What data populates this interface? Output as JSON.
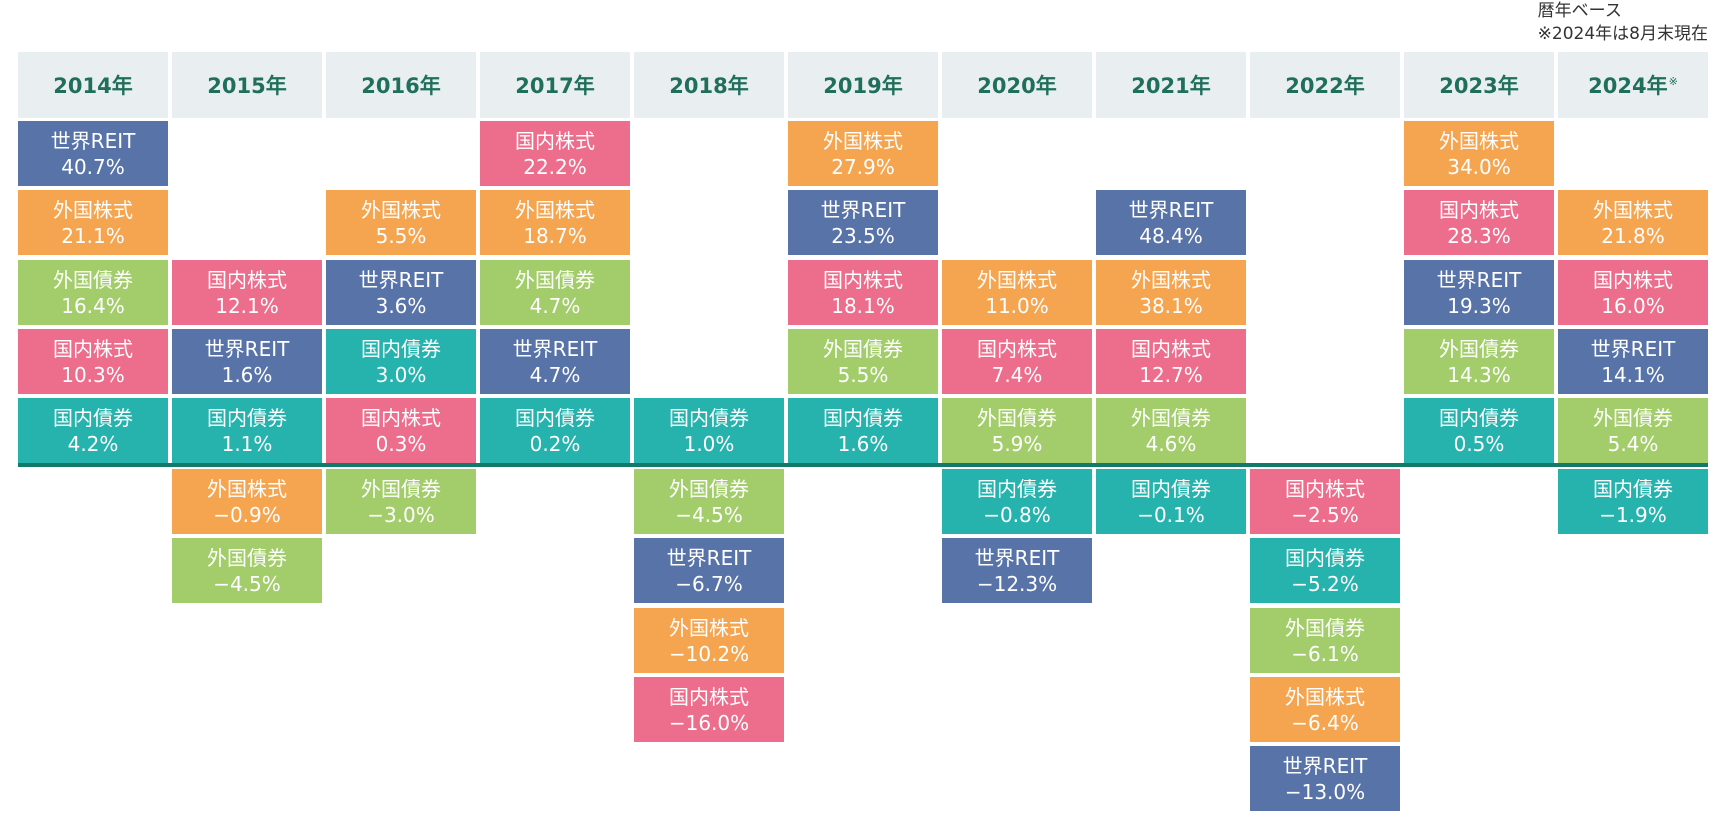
{
  "note": {
    "line1": "暦年ベース",
    "line2": "※2024年は8月末現在"
  },
  "colors": {
    "世界REIT": "#5873a8",
    "外国株式": "#f5a550",
    "外国債券": "#a3cd6b",
    "国内株式": "#ec6d8c",
    "国内債券": "#27b3ad"
  },
  "chart_data": {
    "type": "table",
    "title": "",
    "categories": [
      "2014年",
      "2015年",
      "2016年",
      "2017年",
      "2018年",
      "2019年",
      "2020年",
      "2021年",
      "2022年",
      "2023年",
      "2024年"
    ],
    "category_marks": [
      "",
      "",
      "",
      "",
      "",
      "",
      "",
      "",
      "",
      "",
      "※"
    ],
    "asset_classes": [
      "世界REIT",
      "外国株式",
      "外国債券",
      "国内株式",
      "国内債券"
    ],
    "years": [
      {
        "positive": [
          {
            "asset": "世界REIT",
            "label": "40.7%",
            "value": 40.7
          },
          {
            "asset": "外国株式",
            "label": "21.1%",
            "value": 21.1
          },
          {
            "asset": "外国債券",
            "label": "16.4%",
            "value": 16.4
          },
          {
            "asset": "国内株式",
            "label": "10.3%",
            "value": 10.3
          },
          {
            "asset": "国内債券",
            "label": "4.2%",
            "value": 4.2
          }
        ],
        "negative": []
      },
      {
        "positive": [
          {
            "asset": "国内株式",
            "label": "12.1%",
            "value": 12.1
          },
          {
            "asset": "世界REIT",
            "label": "1.6%",
            "value": 1.6
          },
          {
            "asset": "国内債券",
            "label": "1.1%",
            "value": 1.1
          }
        ],
        "negative": [
          {
            "asset": "外国株式",
            "label": "−0.9%",
            "value": -0.9
          },
          {
            "asset": "外国債券",
            "label": "−4.5%",
            "value": -4.5
          }
        ]
      },
      {
        "positive": [
          {
            "asset": "外国株式",
            "label": "5.5%",
            "value": 5.5
          },
          {
            "asset": "世界REIT",
            "label": "3.6%",
            "value": 3.6
          },
          {
            "asset": "国内債券",
            "label": "3.0%",
            "value": 3.0
          },
          {
            "asset": "国内株式",
            "label": "0.3%",
            "value": 0.3
          }
        ],
        "negative": [
          {
            "asset": "外国債券",
            "label": "−3.0%",
            "value": -3.0
          }
        ]
      },
      {
        "positive": [
          {
            "asset": "国内株式",
            "label": "22.2%",
            "value": 22.2
          },
          {
            "asset": "外国株式",
            "label": "18.7%",
            "value": 18.7
          },
          {
            "asset": "外国債券",
            "label": "4.7%",
            "value": 4.7
          },
          {
            "asset": "世界REIT",
            "label": "4.7%",
            "value": 4.7
          },
          {
            "asset": "国内債券",
            "label": "0.2%",
            "value": 0.2
          }
        ],
        "negative": []
      },
      {
        "positive": [
          {
            "asset": "国内債券",
            "label": "1.0%",
            "value": 1.0
          }
        ],
        "negative": [
          {
            "asset": "外国債券",
            "label": "−4.5%",
            "value": -4.5
          },
          {
            "asset": "世界REIT",
            "label": "−6.7%",
            "value": -6.7
          },
          {
            "asset": "外国株式",
            "label": "−10.2%",
            "value": -10.2
          },
          {
            "asset": "国内株式",
            "label": "−16.0%",
            "value": -16.0
          }
        ]
      },
      {
        "positive": [
          {
            "asset": "外国株式",
            "label": "27.9%",
            "value": 27.9
          },
          {
            "asset": "世界REIT",
            "label": "23.5%",
            "value": 23.5
          },
          {
            "asset": "国内株式",
            "label": "18.1%",
            "value": 18.1
          },
          {
            "asset": "外国債券",
            "label": "5.5%",
            "value": 5.5
          },
          {
            "asset": "国内債券",
            "label": "1.6%",
            "value": 1.6
          }
        ],
        "negative": []
      },
      {
        "positive": [
          {
            "asset": "外国株式",
            "label": "11.0%",
            "value": 11.0
          },
          {
            "asset": "国内株式",
            "label": "7.4%",
            "value": 7.4
          },
          {
            "asset": "外国債券",
            "label": "5.9%",
            "value": 5.9
          }
        ],
        "negative": [
          {
            "asset": "国内債券",
            "label": "−0.8%",
            "value": -0.8
          },
          {
            "asset": "世界REIT",
            "label": "−12.3%",
            "value": -12.3
          }
        ]
      },
      {
        "positive": [
          {
            "asset": "世界REIT",
            "label": "48.4%",
            "value": 48.4
          },
          {
            "asset": "外国株式",
            "label": "38.1%",
            "value": 38.1
          },
          {
            "asset": "国内株式",
            "label": "12.7%",
            "value": 12.7
          },
          {
            "asset": "外国債券",
            "label": "4.6%",
            "value": 4.6
          }
        ],
        "negative": [
          {
            "asset": "国内債券",
            "label": "−0.1%",
            "value": -0.1
          }
        ]
      },
      {
        "positive": [],
        "negative": [
          {
            "asset": "国内株式",
            "label": "−2.5%",
            "value": -2.5
          },
          {
            "asset": "国内債券",
            "label": "−5.2%",
            "value": -5.2
          },
          {
            "asset": "外国債券",
            "label": "−6.1%",
            "value": -6.1
          },
          {
            "asset": "外国株式",
            "label": "−6.4%",
            "value": -6.4
          },
          {
            "asset": "世界REIT",
            "label": "−13.0%",
            "value": -13.0
          }
        ]
      },
      {
        "positive": [
          {
            "asset": "外国株式",
            "label": "34.0%",
            "value": 34.0
          },
          {
            "asset": "国内株式",
            "label": "28.3%",
            "value": 28.3
          },
          {
            "asset": "世界REIT",
            "label": "19.3%",
            "value": 19.3
          },
          {
            "asset": "外国債券",
            "label": "14.3%",
            "value": 14.3
          },
          {
            "asset": "国内債券",
            "label": "0.5%",
            "value": 0.5
          }
        ],
        "negative": []
      },
      {
        "positive": [
          {
            "asset": "外国株式",
            "label": "21.8%",
            "value": 21.8
          },
          {
            "asset": "国内株式",
            "label": "16.0%",
            "value": 16.0
          },
          {
            "asset": "世界REIT",
            "label": "14.1%",
            "value": 14.1
          },
          {
            "asset": "外国債券",
            "label": "5.4%",
            "value": 5.4
          }
        ],
        "negative": [
          {
            "asset": "国内債券",
            "label": "−1.9%",
            "value": -1.9
          }
        ]
      }
    ]
  }
}
